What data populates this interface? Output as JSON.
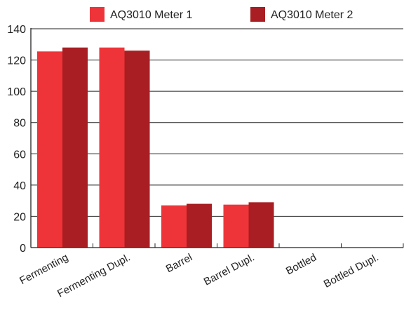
{
  "chart_data": {
    "type": "bar",
    "title": "",
    "xlabel": "",
    "ylabel": "",
    "ylim": [
      0,
      140
    ],
    "yticks": [
      0,
      20,
      40,
      60,
      80,
      100,
      120,
      140
    ],
    "grid": true,
    "legend_position": "top",
    "categories": [
      "Fermenting",
      "Fermenting Dupl.",
      "Barrel",
      "Barrel Dupl.",
      "Bottled",
      "Bottled Dupl."
    ],
    "series": [
      {
        "name": "AQ3010 Meter 1",
        "color": "#ee3439",
        "values": [
          125.5,
          128,
          27,
          27.5,
          0,
          0
        ]
      },
      {
        "name": "AQ3010 Meter 2",
        "color": "#a81e22",
        "values": [
          128,
          126,
          28,
          29,
          0,
          0
        ]
      }
    ]
  }
}
